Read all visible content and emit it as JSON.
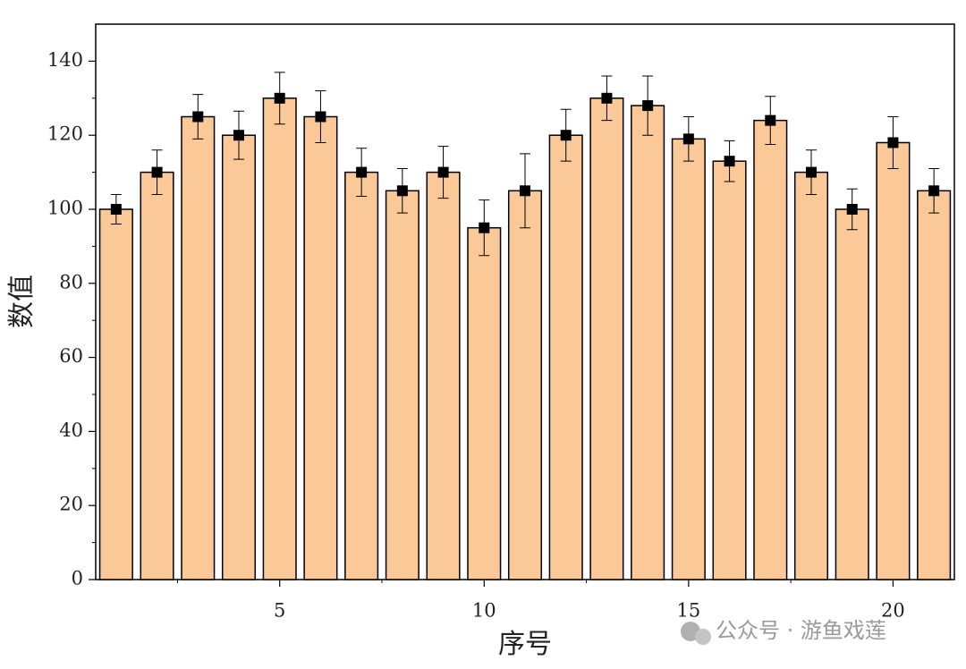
{
  "chart_data": {
    "type": "bar",
    "x_label": "序号",
    "y_label": "数值",
    "x": [
      1,
      2,
      3,
      4,
      5,
      6,
      7,
      8,
      9,
      10,
      11,
      12,
      13,
      14,
      15,
      16,
      17,
      18,
      19,
      20,
      21
    ],
    "values": [
      100,
      110,
      125,
      120,
      130,
      125,
      110,
      105,
      110,
      95,
      105,
      120,
      130,
      128,
      119,
      113,
      124,
      110,
      100,
      118,
      105
    ],
    "errors": [
      4,
      6,
      6,
      6.5,
      7,
      7,
      6.5,
      6,
      7,
      7.5,
      10,
      7,
      6,
      8,
      6,
      5.5,
      6.5,
      6,
      5.5,
      7,
      6
    ],
    "color": "#fbc898",
    "marker_color": "#000000",
    "xlim": [
      0.5,
      21.5
    ],
    "xticks": [
      5,
      10,
      15,
      20
    ],
    "ylim": [
      0,
      150
    ],
    "yticks": [
      0,
      20,
      40,
      60,
      80,
      100,
      120,
      140
    ],
    "grid": false
  },
  "watermark": "公众号 · 游鱼戏莲"
}
